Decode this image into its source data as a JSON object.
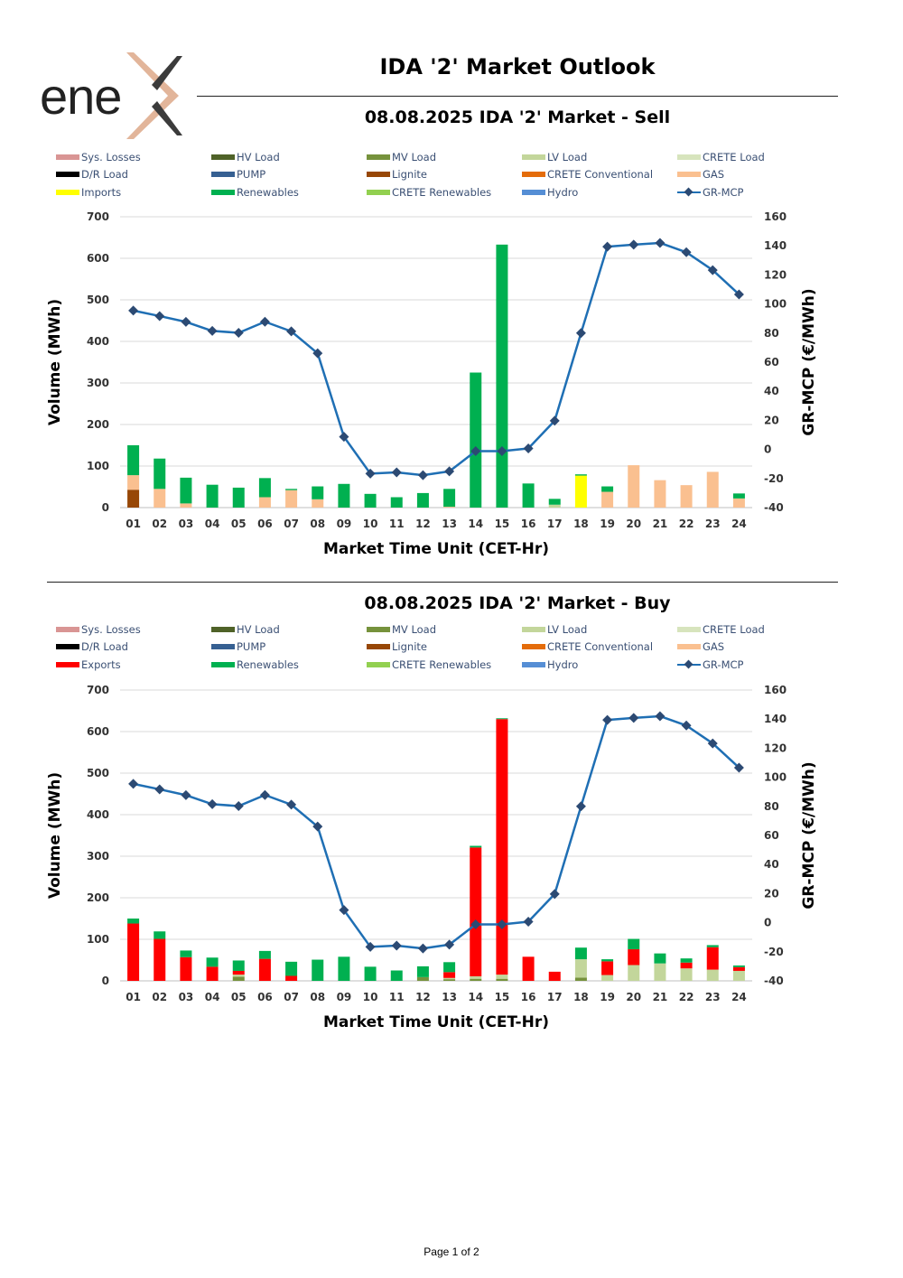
{
  "header": {
    "logo_text": "ene",
    "title": "IDA '2' Market Outlook"
  },
  "footer": {
    "page_label": "Page 1 of 2"
  },
  "colors": {
    "Sys. Losses": "#d99594",
    "HV Load": "#4f6228",
    "MV Load": "#76923c",
    "LV Load": "#c3d69b",
    "CRETE Load": "#d7e4bd",
    "D/R Load": "#000000",
    "PUMP": "#366092",
    "Lignite": "#974706",
    "CRETE Conventional": "#e46c0a",
    "GAS": "#fac090",
    "Imports": "#ffff00",
    "Exports": "#ff0000",
    "Renewables": "#00b050",
    "CRETE Renewables": "#92d050",
    "Hydro": "#558ed5",
    "GR-MCP": "#1f6fb4",
    "marker": "#2c4a73"
  },
  "chart_data": [
    {
      "type": "bar",
      "title": "08.08.2025  IDA '2' Market - Sell",
      "xlabel": "Market Time Unit (CET-Hr)",
      "ylabel": "Volume (MWh)",
      "y2label": "GR-MCP (€/MWh)",
      "ylim": [
        0,
        700
      ],
      "yticks": [
        0,
        100,
        200,
        300,
        400,
        500,
        600,
        700
      ],
      "y2lim": [
        -40,
        160
      ],
      "y2ticks": [
        -40,
        -20,
        0,
        20,
        40,
        60,
        80,
        100,
        120,
        140,
        160
      ],
      "legend": [
        "Sys. Losses",
        "HV Load",
        "MV Load",
        "LV Load",
        "CRETE Load",
        "D/R Load",
        "PUMP",
        "Lignite",
        "CRETE Conventional",
        "GAS",
        "Imports",
        "Renewables",
        "CRETE Renewables",
        "Hydro",
        "GR-MCP"
      ],
      "categories": [
        "01",
        "02",
        "03",
        "04",
        "05",
        "06",
        "07",
        "08",
        "09",
        "10",
        "11",
        "12",
        "13",
        "14",
        "15",
        "16",
        "17",
        "18",
        "19",
        "20",
        "21",
        "22",
        "23",
        "24"
      ],
      "series": [
        {
          "name": "Lignite",
          "values": [
            43,
            0,
            0,
            0,
            0,
            0,
            0,
            0,
            0,
            0,
            0,
            0,
            0,
            0,
            0,
            0,
            0,
            0,
            0,
            0,
            0,
            0,
            0,
            0
          ]
        },
        {
          "name": "GAS",
          "values": [
            35,
            45,
            10,
            0,
            0,
            25,
            42,
            20,
            0,
            0,
            0,
            0,
            2,
            0,
            0,
            0,
            0,
            0,
            38,
            102,
            66,
            54,
            86,
            22
          ]
        },
        {
          "name": "LV Load",
          "values": [
            0,
            0,
            0,
            0,
            0,
            0,
            0,
            0,
            0,
            0,
            0,
            0,
            0,
            0,
            0,
            0,
            7,
            0,
            0,
            0,
            0,
            0,
            0,
            0
          ]
        },
        {
          "name": "Imports",
          "values": [
            0,
            0,
            0,
            0,
            0,
            0,
            0,
            0,
            0,
            0,
            0,
            0,
            0,
            0,
            0,
            0,
            0,
            77,
            0,
            0,
            0,
            0,
            0,
            0
          ]
        },
        {
          "name": "Renewables",
          "values": [
            72,
            73,
            62,
            55,
            48,
            46,
            3,
            31,
            57,
            33,
            25,
            35,
            43,
            325,
            633,
            58,
            14,
            3,
            13,
            0,
            0,
            0,
            0,
            12
          ]
        }
      ],
      "line": {
        "name": "GR-MCP",
        "values": [
          95.5,
          91.7,
          87.7,
          81.5,
          80.2,
          87.8,
          81.2,
          66.1,
          8.7,
          -16.6,
          -15.8,
          -17.7,
          -15.1,
          -1.2,
          -1.2,
          0.7,
          19.7,
          80.0,
          139.4,
          140.8,
          142.0,
          135.6,
          123.3,
          106.6
        ]
      }
    },
    {
      "type": "bar",
      "title": "08.08.2025  IDA '2' Market - Buy",
      "xlabel": "Market Time Unit (CET-Hr)",
      "ylabel": "Volume (MWh)",
      "y2label": "GR-MCP (€/MWh)",
      "ylim": [
        0,
        700
      ],
      "yticks": [
        0,
        100,
        200,
        300,
        400,
        500,
        600,
        700
      ],
      "y2lim": [
        -40,
        160
      ],
      "y2ticks": [
        -40,
        -20,
        0,
        20,
        40,
        60,
        80,
        100,
        120,
        140,
        160
      ],
      "legend": [
        "Sys. Losses",
        "HV Load",
        "MV Load",
        "LV Load",
        "CRETE Load",
        "D/R Load",
        "PUMP",
        "Lignite",
        "CRETE Conventional",
        "GAS",
        "Exports",
        "Renewables",
        "CRETE Renewables",
        "Hydro",
        "GR-MCP"
      ],
      "categories": [
        "01",
        "02",
        "03",
        "04",
        "05",
        "06",
        "07",
        "08",
        "09",
        "10",
        "11",
        "12",
        "13",
        "14",
        "15",
        "16",
        "17",
        "18",
        "19",
        "20",
        "21",
        "22",
        "23",
        "24"
      ],
      "series": [
        {
          "name": "MV Load",
          "values": [
            0,
            0,
            0,
            0,
            10,
            0,
            0,
            0,
            0,
            0,
            0,
            9,
            4,
            5,
            5,
            0,
            0,
            8,
            0,
            0,
            0,
            0,
            0,
            0
          ]
        },
        {
          "name": "LV Load",
          "values": [
            0,
            0,
            0,
            0,
            5,
            0,
            0,
            0,
            0,
            0,
            0,
            0,
            3,
            6,
            10,
            0,
            0,
            44,
            14,
            38,
            42,
            30,
            27,
            24
          ]
        },
        {
          "name": "Exports",
          "values": [
            138,
            101,
            57,
            34,
            9,
            53,
            12,
            0,
            0,
            0,
            0,
            0,
            14,
            310,
            615,
            58,
            22,
            0,
            33,
            38,
            0,
            14,
            54,
            9
          ]
        },
        {
          "name": "Renewables",
          "values": [
            12,
            18,
            16,
            22,
            25,
            19,
            34,
            51,
            58,
            34,
            25,
            26,
            24,
            4,
            2,
            0,
            0,
            28,
            5,
            25,
            24,
            10,
            5,
            4
          ]
        }
      ],
      "line": {
        "name": "GR-MCP",
        "values": [
          95.5,
          91.7,
          87.7,
          81.5,
          80.2,
          87.8,
          81.2,
          66.1,
          8.7,
          -16.6,
          -15.8,
          -17.7,
          -15.1,
          -1.2,
          -1.2,
          0.7,
          19.7,
          80.0,
          139.4,
          140.8,
          142.0,
          135.6,
          123.3,
          106.6
        ]
      }
    }
  ]
}
